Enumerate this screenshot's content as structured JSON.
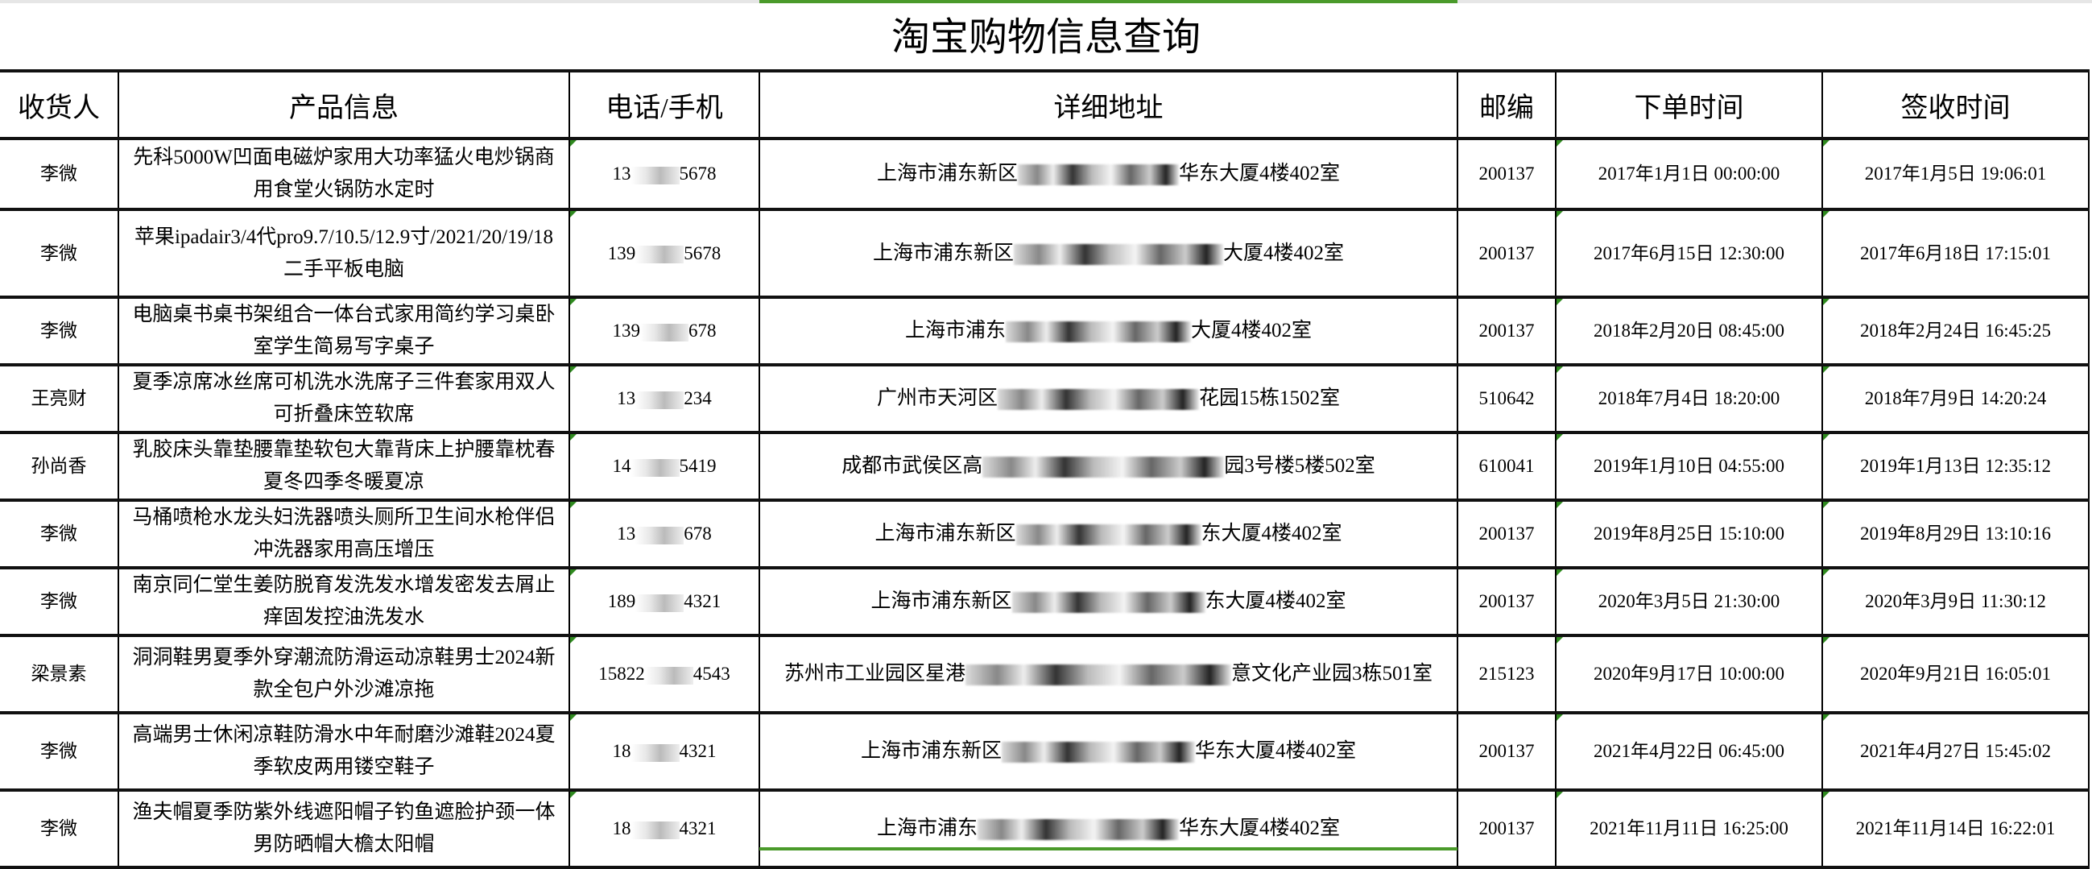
{
  "title": "淘宝购物信息查询",
  "colors": {
    "selection_green": "#4a9a2a",
    "indicator_green": "#2f8a1f"
  },
  "headers": [
    "收货人",
    "产品信息",
    "电话/手机",
    "详细地址",
    "邮编",
    "下单时间",
    "签收时间"
  ],
  "rows": [
    {
      "name": "李微",
      "product": "先科5000W凹面电磁炉家用大功率猛火电炒锅商用食堂火锅防水定时",
      "phone_prefix": "13",
      "phone_suffix": "5678",
      "addr_prefix": "上海市浦东新区",
      "addr_suffix": "华东大厦4楼402室",
      "zip": "200137",
      "order_time": "2017年1月1日 00:00:00",
      "sign_time": "2017年1月5日 19:06:01"
    },
    {
      "name": "李微",
      "product": "苹果ipadair3/4代pro9.7/10.5/12.9寸/2021/20/19/18二手平板电脑",
      "phone_prefix": "139",
      "phone_suffix": "5678",
      "addr_prefix": "上海市浦东新区",
      "addr_suffix": "大厦4楼402室",
      "zip": "200137",
      "order_time": "2017年6月15日 12:30:00",
      "sign_time": "2017年6月18日 17:15:01"
    },
    {
      "name": "李微",
      "product": "电脑桌书桌书架组合一体台式家用简约学习桌卧室学生简易写字桌子",
      "phone_prefix": "139",
      "phone_suffix": "678",
      "addr_prefix": "上海市浦东",
      "addr_suffix": "大厦4楼402室",
      "zip": "200137",
      "order_time": "2018年2月20日 08:45:00",
      "sign_time": "2018年2月24日 16:45:25"
    },
    {
      "name": "王亮财",
      "product": "夏季凉席冰丝席可机洗水洗席子三件套家用双人可折叠床笠软席",
      "phone_prefix": "13",
      "phone_suffix": "234",
      "addr_prefix": "广州市天河区",
      "addr_suffix": "花园15栋1502室",
      "zip": "510642",
      "order_time": "2018年7月4日 18:20:00",
      "sign_time": "2018年7月9日 14:20:24"
    },
    {
      "name": "孙尚香",
      "product": "乳胶床头靠垫腰靠垫软包大靠背床上护腰靠枕春夏冬四季冬暖夏凉",
      "phone_prefix": "14",
      "phone_suffix": "5419",
      "addr_prefix": "成都市武侯区高",
      "addr_suffix": "园3号楼5楼502室",
      "zip": "610041",
      "order_time": "2019年1月10日 04:55:00",
      "sign_time": "2019年1月13日 12:35:12"
    },
    {
      "name": "李微",
      "product": "马桶喷枪水龙头妇洗器喷头厕所卫生间水枪伴侣冲洗器家用高压增压",
      "phone_prefix": "13",
      "phone_suffix": "678",
      "addr_prefix": "上海市浦东新区",
      "addr_suffix": "东大厦4楼402室",
      "zip": "200137",
      "order_time": "2019年8月25日 15:10:00",
      "sign_time": "2019年8月29日 13:10:16"
    },
    {
      "name": "李微",
      "product": "南京同仁堂生姜防脱育发洗发水增发密发去屑止痒固发控油洗发水",
      "phone_prefix": "189",
      "phone_suffix": "4321",
      "addr_prefix": "上海市浦东新区",
      "addr_suffix": "东大厦4楼402室",
      "zip": "200137",
      "order_time": "2020年3月5日 21:30:00",
      "sign_time": "2020年3月9日 11:30:12"
    },
    {
      "name": "梁景素",
      "product": "洞洞鞋男夏季外穿潮流防滑运动凉鞋男士2024新款全包户外沙滩凉拖",
      "phone_prefix": "15822",
      "phone_suffix": "4543",
      "addr_prefix": "苏州市工业园区星港",
      "addr_suffix": "意文化产业园3栋501室",
      "zip": "215123",
      "order_time": "2020年9月17日 10:00:00",
      "sign_time": "2020年9月21日 16:05:01"
    },
    {
      "name": "李微",
      "product": "高端男士休闲凉鞋防滑水中年耐磨沙滩鞋2024夏季软皮两用镂空鞋子",
      "phone_prefix": "18",
      "phone_suffix": "4321",
      "addr_prefix": "上海市浦东新区",
      "addr_suffix": "华东大厦4楼402室",
      "zip": "200137",
      "order_time": "2021年4月22日 06:45:00",
      "sign_time": "2021年4月27日 15:45:02"
    },
    {
      "name": "李微",
      "product": "渔夫帽夏季防紫外线遮阳帽子钓鱼遮脸护颈一体男防晒帽大檐太阳帽",
      "phone_prefix": "18",
      "phone_suffix": "4321",
      "addr_prefix": "上海市浦东",
      "addr_suffix": "华东大厦4楼402室",
      "zip": "200137",
      "order_time": "2021年11月11日 16:25:00",
      "sign_time": "2021年11月14日 16:22:01"
    }
  ]
}
